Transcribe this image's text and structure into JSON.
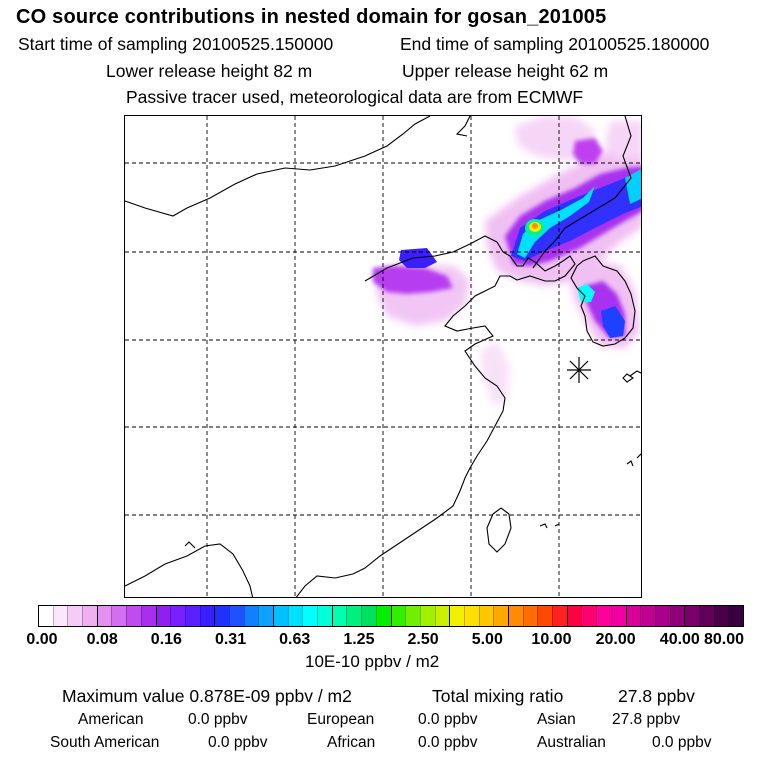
{
  "header": {
    "title": "CO  source contributions in nested domain for gosan_201005",
    "start_time": "Start time of sampling 20100525.150000",
    "end_time": "End time of sampling 20100525.180000",
    "lower_height": "Lower release height   82 m",
    "upper_height": "Upper release height   62 m",
    "note": "Passive tracer used, meteorological data are from ECMWF"
  },
  "colorbar": {
    "tick_labels": [
      "0.00",
      "0.08",
      "0.16",
      "0.31",
      "0.63",
      "1.25",
      "2.50",
      "5.00",
      "10.00",
      "20.00",
      "40.00",
      "80.00"
    ],
    "units": "10E-10 ppbv / m2",
    "colors": [
      "#ffffff",
      "#fbe6fb",
      "#f5ccf5",
      "#efb0f0",
      "#e38ff0",
      "#d36ef0",
      "#c04cf0",
      "#aa2ef0",
      "#9020f0",
      "#7a20ff",
      "#5a20ff",
      "#3a20ff",
      "#2030ff",
      "#2050ff",
      "#1080ff",
      "#10a0ff",
      "#00c0ff",
      "#00e0ff",
      "#00ffff",
      "#00ffd8",
      "#00ffb0",
      "#00f080",
      "#00e060",
      "#00f000",
      "#30f000",
      "#70f000",
      "#a0f000",
      "#c8f000",
      "#f0f000",
      "#ffe000",
      "#ffc800",
      "#ffa800",
      "#ff8c00",
      "#ff6c00",
      "#ff4800",
      "#ff2020",
      "#ff0040",
      "#ff0070",
      "#ff0098",
      "#f000a0",
      "#d80098",
      "#c00090",
      "#a80088",
      "#900078",
      "#780068",
      "#600058",
      "#4a0048",
      "#380040"
    ]
  },
  "stats": {
    "max_label": "Maximum value  0.878E-09 ppbv / m2",
    "total_label": "Total mixing ratio",
    "total_value": "27.8 ppbv",
    "regions": [
      {
        "name": "American",
        "value": "0.0 ppbv"
      },
      {
        "name": "European",
        "value": "0.0 ppbv"
      },
      {
        "name": "Asian",
        "value": "27.8 ppbv"
      },
      {
        "name": "South American",
        "value": "0.0 ppbv"
      },
      {
        "name": "African",
        "value": "0.0 ppbv"
      },
      {
        "name": "Australian",
        "value": "0.0 ppbv"
      }
    ]
  }
}
